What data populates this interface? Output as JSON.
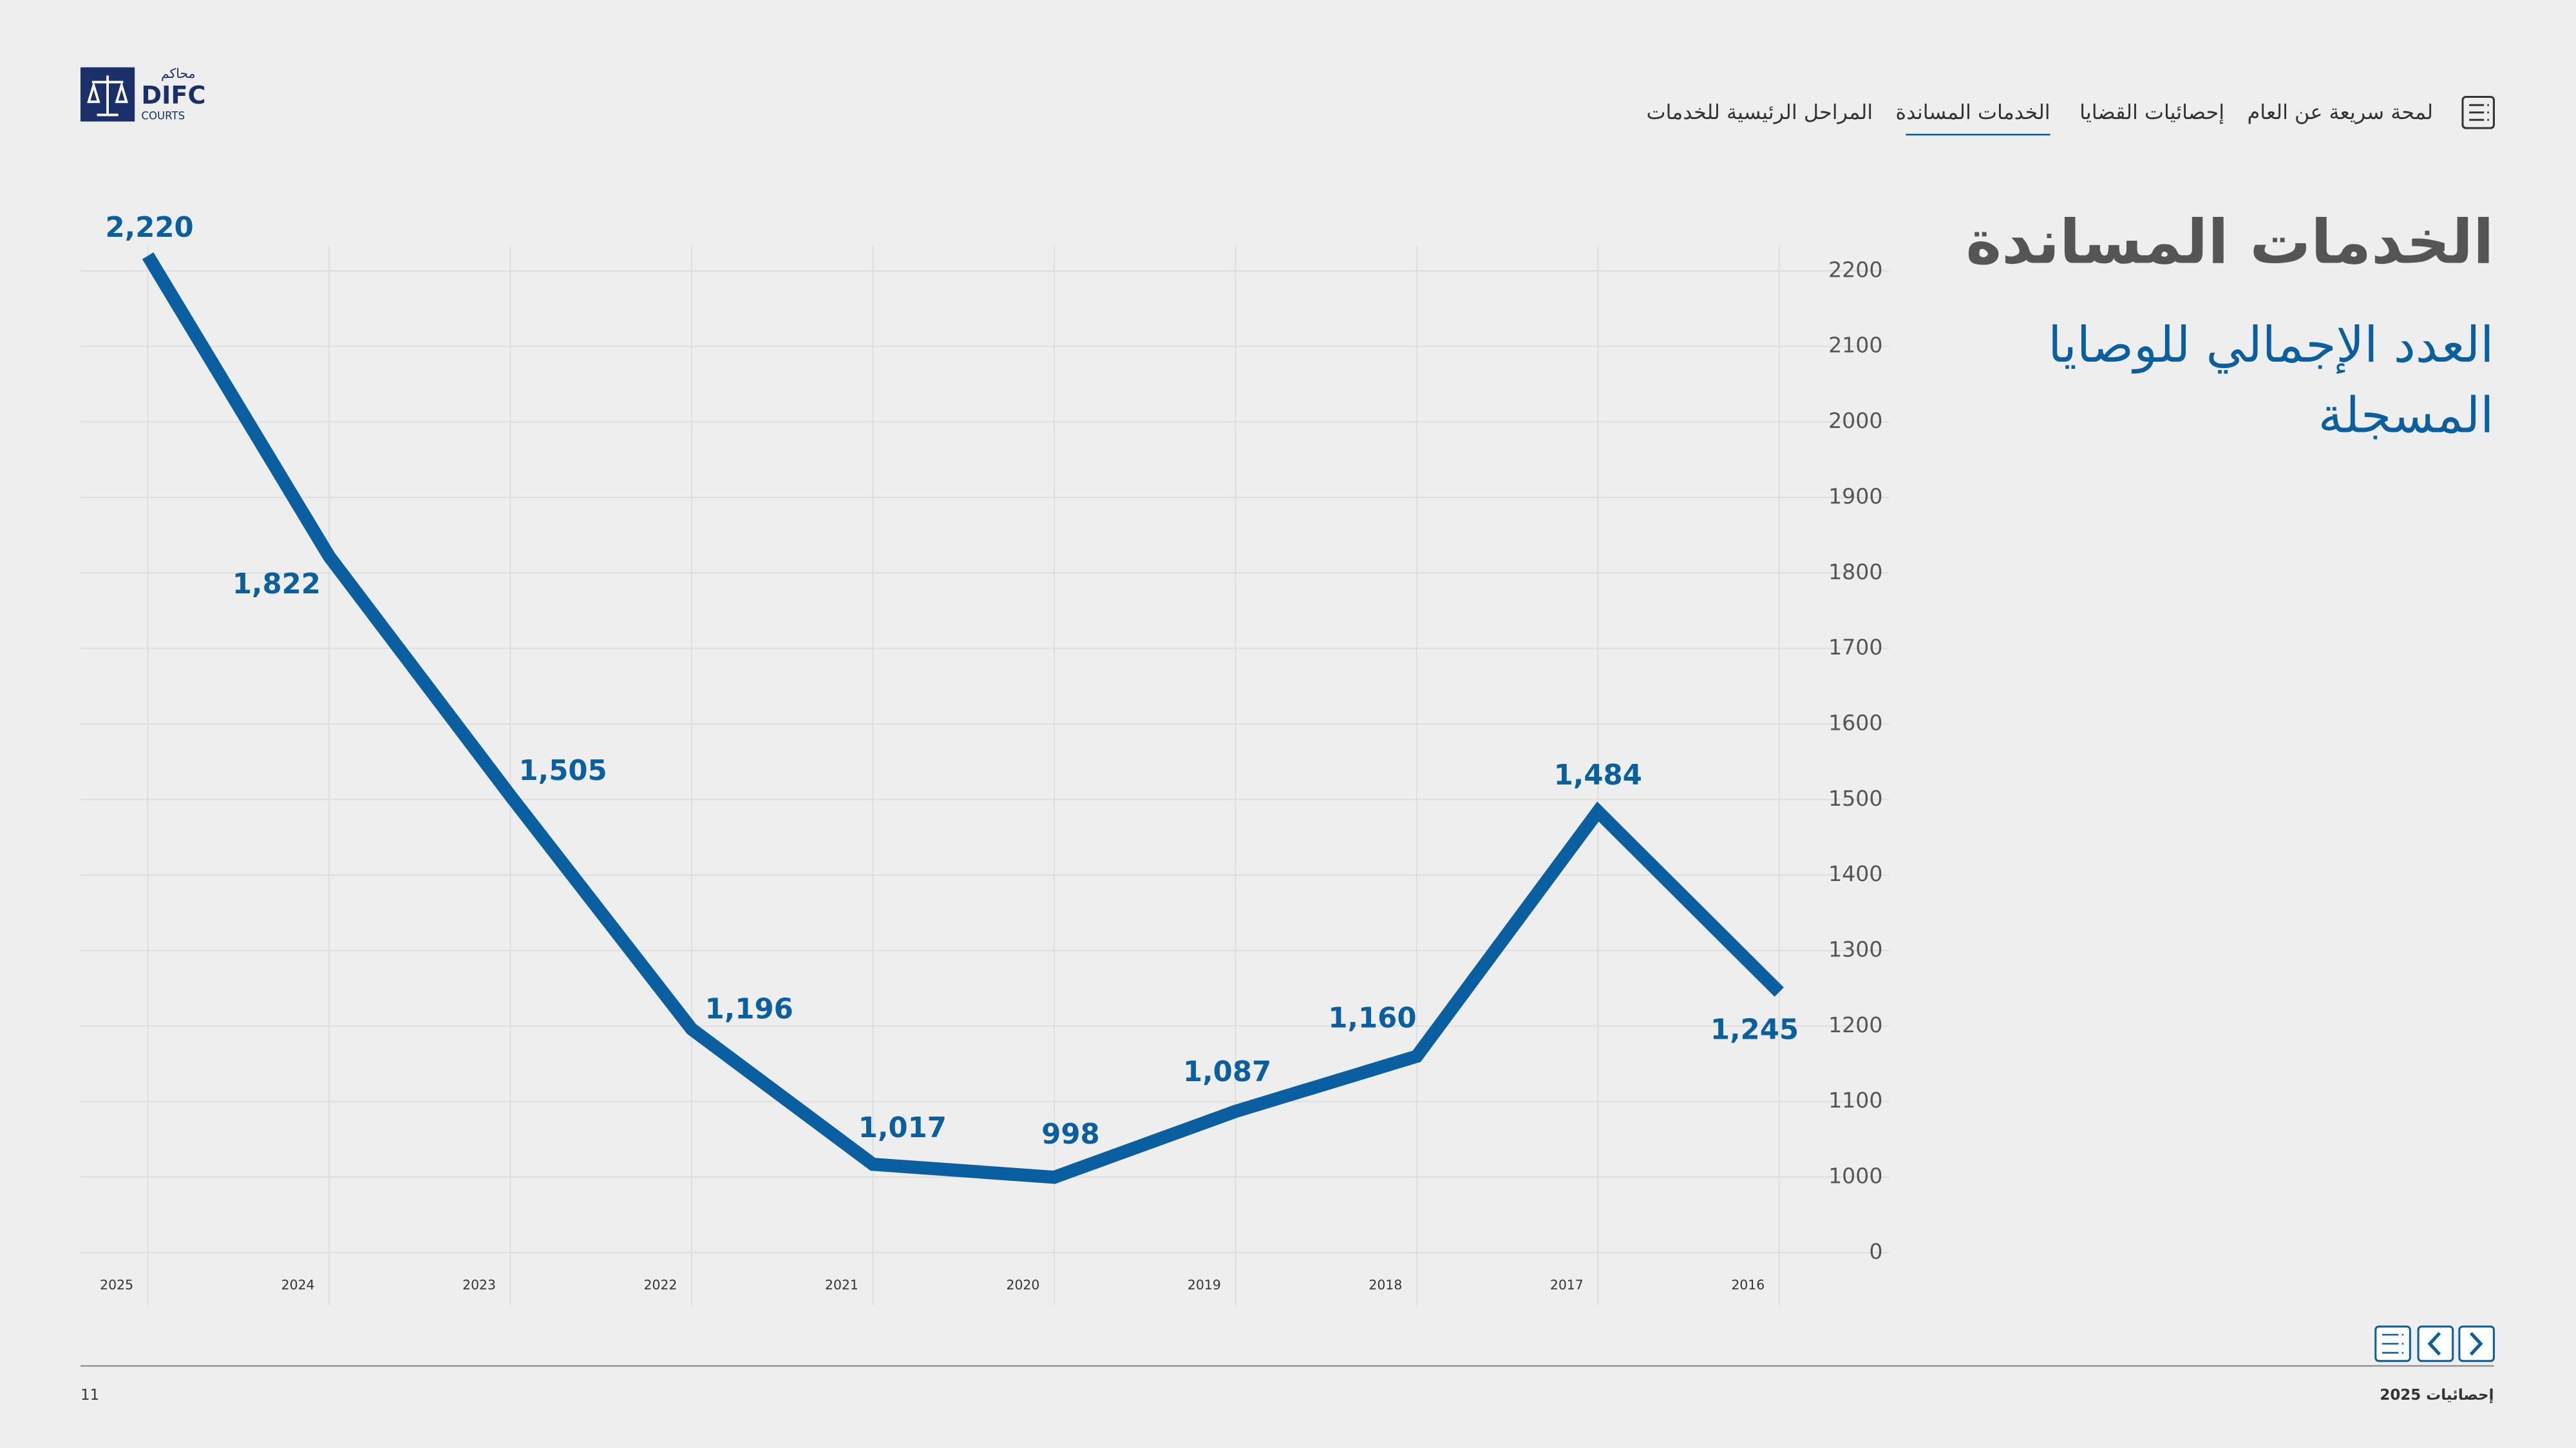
{
  "header": {
    "logo": {
      "arabic": "محاكم",
      "name": "DIFC",
      "sub": "COURTS"
    },
    "nav": [
      "لمحة سريعة عن العام",
      "إحصائيات القضايا",
      "الخدمات المساندة",
      "المراحل الرئيسية للخدمات"
    ]
  },
  "title": "الخدمات المساندة",
  "subtitle": [
    "العدد الإجمالي للوصايا",
    "المسجلة"
  ],
  "chart_data": {
    "type": "line",
    "categories": [
      "2025",
      "2024",
      "2023",
      "2022",
      "2021",
      "2020",
      "2019",
      "2018",
      "2017",
      "2016"
    ],
    "series": [
      {
        "name": "العدد الإجمالي للوصايا المسجلة",
        "color": "#0a5fa0",
        "values": [
          2220,
          1822,
          1505,
          1196,
          1017,
          998,
          1087,
          1160,
          1484,
          1245
        ],
        "value_labels": [
          "2,220",
          "1,822",
          "1,505",
          "1,196",
          "1,017",
          "998",
          "1,087",
          "1,160",
          "1,484",
          "1,245"
        ]
      }
    ],
    "ylim": [
      0,
      2200
    ],
    "yticks": [
      0,
      1000,
      1100,
      1200,
      1300,
      1400,
      1500,
      1600,
      1700,
      1800,
      1900,
      2000,
      2100,
      2200
    ],
    "grid": true
  },
  "footer": {
    "page": "11",
    "label": "2025 إحصائيات"
  }
}
